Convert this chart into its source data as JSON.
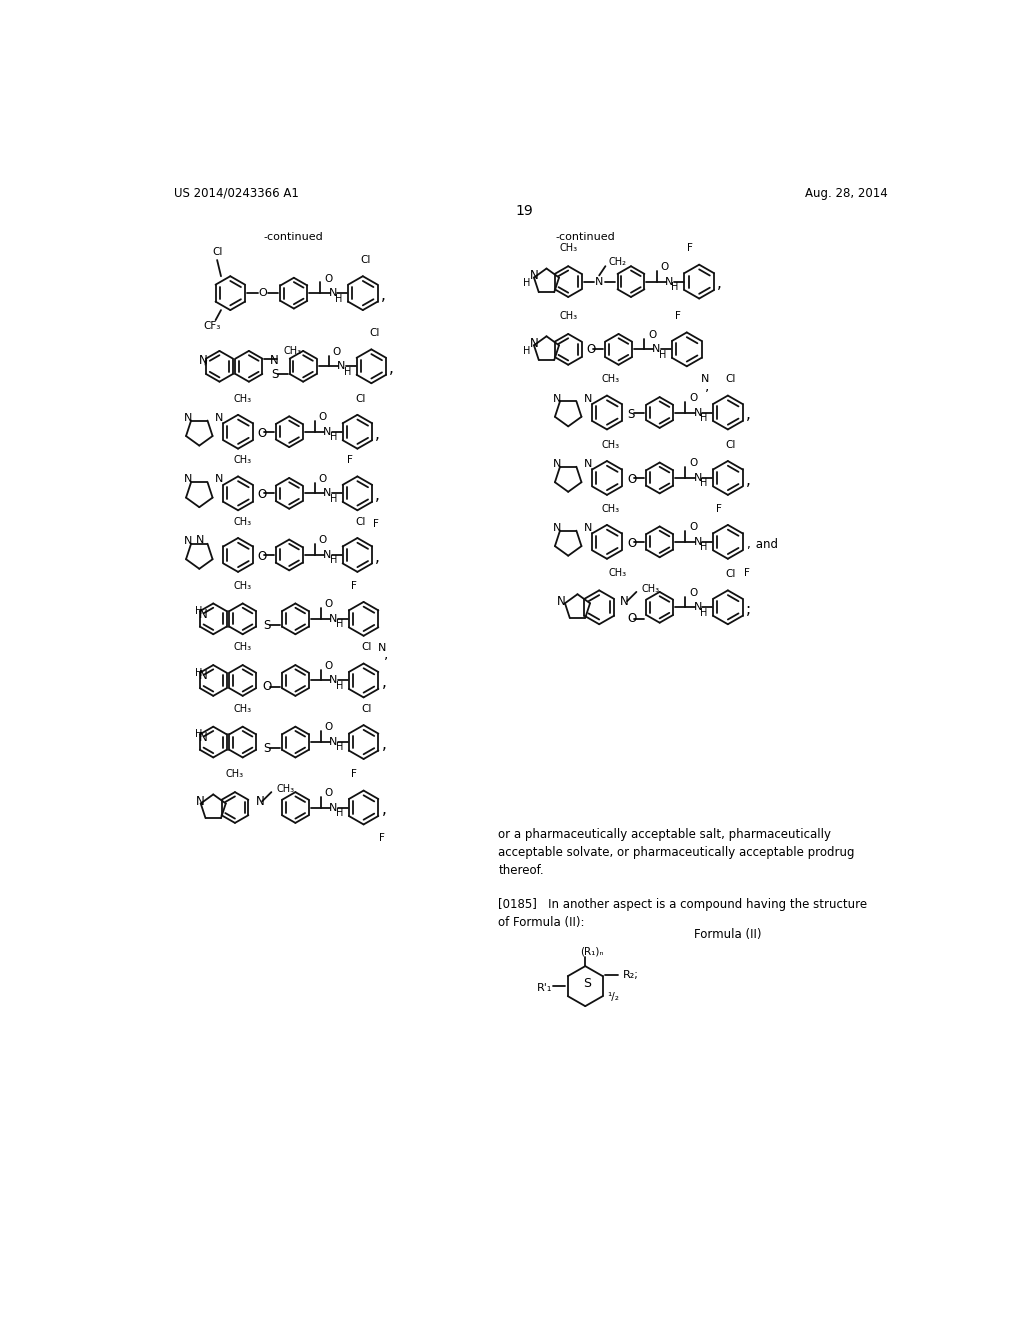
{
  "bg_color": "#ffffff",
  "page_width": 10.24,
  "page_height": 13.2,
  "header_left": "US 2014/0243366 A1",
  "header_right": "Aug. 28, 2014",
  "page_number": "19",
  "continued_left": "-continued",
  "continued_right": "-continued",
  "bottom_text_1": "or a pharmaceutically acceptable salt, pharmaceutically\nacceptable solvate, or pharmaceutically acceptable prodrug\nthereof.",
  "bottom_text_2": "[0185]   In another aspect is a compound having the structure\nof Formula (II):",
  "formula_label": "Formula (II)"
}
